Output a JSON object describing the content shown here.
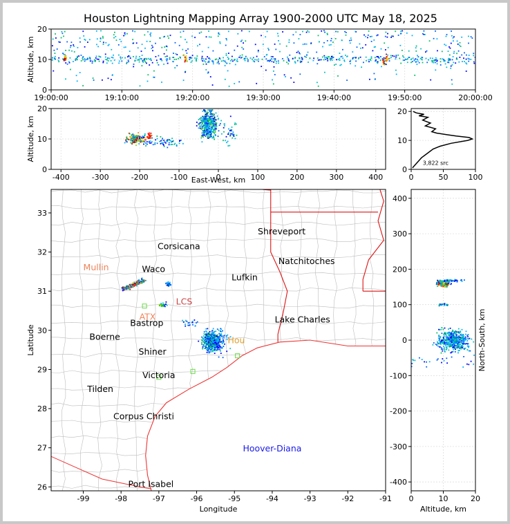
{
  "title": "Houston Lightning Mapping Array 1900-2000 UTC May 18, 2025",
  "colors": {
    "border": "#d0d0d0",
    "county": "#bcbcbc",
    "state": "#dd1111",
    "coast": "#ee3333",
    "grid": "#dddddd",
    "frame": "#000000"
  },
  "chart_data": [
    {
      "type": "scatter",
      "name": "time-altitude",
      "ylabel": "Altitude, km",
      "xlim": [
        "19:00:00",
        "20:00:00"
      ],
      "ylim": [
        0,
        20
      ],
      "x_ticks": [
        "19:00:00",
        "19:10:00",
        "19:20:00",
        "19:30:00",
        "19:40:00",
        "19:50:00",
        "20:00:00"
      ],
      "y_ticks": [
        0,
        10,
        20
      ],
      "grid": true
    },
    {
      "type": "scatter",
      "name": "east-west-altitude",
      "xlabel": "East-West, km",
      "ylabel": "Altitude, km",
      "xlim": [
        -425,
        425
      ],
      "ylim": [
        0,
        20
      ],
      "x_ticks": [
        -400,
        -300,
        -200,
        -100,
        0,
        100,
        200,
        300,
        400
      ],
      "y_ticks": [
        0,
        10,
        20
      ],
      "grid": true
    },
    {
      "type": "line",
      "name": "altitude-histogram",
      "annotation": "3,822 src",
      "xlim": [
        0,
        100
      ],
      "ylim": [
        0,
        21
      ],
      "x_ticks": [
        0,
        50,
        100
      ],
      "y_ticks": [
        0,
        10,
        20
      ],
      "profile": [
        {
          "alt": 0.5,
          "count": 2
        },
        {
          "alt": 1,
          "count": 4
        },
        {
          "alt": 2,
          "count": 8
        },
        {
          "alt": 3,
          "count": 12
        },
        {
          "alt": 4,
          "count": 16
        },
        {
          "alt": 5,
          "count": 22
        },
        {
          "alt": 6,
          "count": 28
        },
        {
          "alt": 7,
          "count": 34
        },
        {
          "alt": 8,
          "count": 45
        },
        {
          "alt": 9,
          "count": 62
        },
        {
          "alt": 10,
          "count": 88
        },
        {
          "alt": 10.5,
          "count": 95
        },
        {
          "alt": 11,
          "count": 90
        },
        {
          "alt": 11.5,
          "count": 70
        },
        {
          "alt": 12,
          "count": 55
        },
        {
          "alt": 12.5,
          "count": 40
        },
        {
          "alt": 13,
          "count": 32
        },
        {
          "alt": 14,
          "count": 38
        },
        {
          "alt": 15,
          "count": 22
        },
        {
          "alt": 16,
          "count": 30
        },
        {
          "alt": 17,
          "count": 18
        },
        {
          "alt": 18,
          "count": 26
        },
        {
          "alt": 18.5,
          "count": 12
        },
        {
          "alt": 19,
          "count": 20
        },
        {
          "alt": 19.5,
          "count": 8
        },
        {
          "alt": 20,
          "count": 3
        }
      ],
      "grid": true
    },
    {
      "type": "map",
      "name": "plan-view",
      "xlabel": "Longitude",
      "ylabel": "Latitude",
      "xlim": [
        -99.85,
        -91
      ],
      "ylim": [
        25.9,
        33.6
      ],
      "x_ticks": [
        -99,
        -98,
        -97,
        -96,
        -95,
        -94,
        -93,
        -92,
        -91
      ],
      "y_ticks": [
        26,
        27,
        28,
        29,
        30,
        31,
        32,
        33
      ],
      "cities": [
        {
          "name": "Shreveport",
          "lon": -93.75,
          "lat": 32.52
        },
        {
          "name": "Corsicana",
          "lon": -96.47,
          "lat": 32.14
        },
        {
          "name": "Natchitoches",
          "lon": -93.09,
          "lat": 31.76
        },
        {
          "name": "Waco",
          "lon": -97.14,
          "lat": 31.56
        },
        {
          "name": "Lufkin",
          "lon": -94.73,
          "lat": 31.35
        },
        {
          "name": "Lake Charles",
          "lon": -93.2,
          "lat": 30.27
        },
        {
          "name": "Bastrop",
          "lon": -97.32,
          "lat": 30.18
        },
        {
          "name": "Boerne",
          "lon": -98.43,
          "lat": 29.83
        },
        {
          "name": "Shiner",
          "lon": -97.17,
          "lat": 29.45
        },
        {
          "name": "Victoria",
          "lon": -97.0,
          "lat": 28.85
        },
        {
          "name": "Tilden",
          "lon": -98.55,
          "lat": 28.5
        },
        {
          "name": "Corpus Christi",
          "lon": -97.4,
          "lat": 27.8
        },
        {
          "name": "Port Isabel",
          "lon": -97.21,
          "lat": 26.07
        }
      ],
      "radar_labels": [
        {
          "name": "Mullin",
          "lon": -98.66,
          "lat": 31.6,
          "color": "#f0845a"
        },
        {
          "name": "ATX",
          "lon": -97.3,
          "lat": 30.34,
          "color": "#f0845a"
        },
        {
          "name": "LCS",
          "lon": -96.33,
          "lat": 30.73,
          "color": "#cc4444"
        },
        {
          "name": "Hou",
          "lon": -94.95,
          "lat": 29.74,
          "color": "#e0a030"
        },
        {
          "name": "Hoover-Diana",
          "lon": -94.0,
          "lat": 26.98,
          "color": "#1a1ae6"
        }
      ]
    },
    {
      "type": "scatter",
      "name": "altitude-north-south",
      "xlabel": "Altitude, km",
      "ylabel": "North-South, km",
      "xlim": [
        0,
        20
      ],
      "ylim": [
        -425,
        425
      ],
      "x_ticks": [
        0,
        10,
        20
      ],
      "y_ticks": [
        -400,
        -300,
        -200,
        -100,
        0,
        100,
        200,
        300,
        400
      ],
      "grid": true
    }
  ]
}
